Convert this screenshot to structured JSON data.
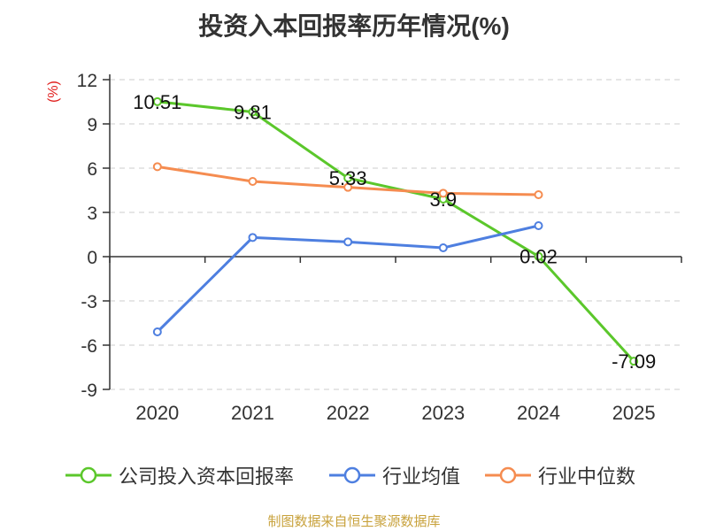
{
  "chart_data": {
    "type": "line",
    "title": "投资入本回报率历年情况(%)",
    "ylabel": "(%)",
    "ylim": [
      -9,
      12
    ],
    "yticks": [
      12,
      9,
      6,
      3,
      0,
      -3,
      -6,
      -9
    ],
    "categories": [
      "2020",
      "2021",
      "2022",
      "2023",
      "2024",
      "2025"
    ],
    "grid": true,
    "legend_position": "bottom",
    "series": [
      {
        "name": "公司投入资本回报率",
        "color": "#5bc72b",
        "values": [
          10.51,
          9.81,
          5.33,
          3.9,
          0.02,
          -7.09
        ],
        "labels": [
          "10.51",
          "9.81",
          "5.33",
          "3.9",
          "0.02",
          "-7.09"
        ]
      },
      {
        "name": "行业均值",
        "color": "#4e7fe0",
        "values": [
          -5.1,
          1.3,
          1.0,
          0.6,
          2.1,
          null
        ]
      },
      {
        "name": "行业中位数",
        "color": "#f58c50",
        "values": [
          6.1,
          5.1,
          4.7,
          4.3,
          4.2,
          null
        ]
      }
    ]
  },
  "source_text": "制图数据来自恒生聚源数据库",
  "colors": {
    "unit": "#e0201e",
    "source": "#c8a23c",
    "axis": "#333333",
    "grid": "#cccccc"
  }
}
